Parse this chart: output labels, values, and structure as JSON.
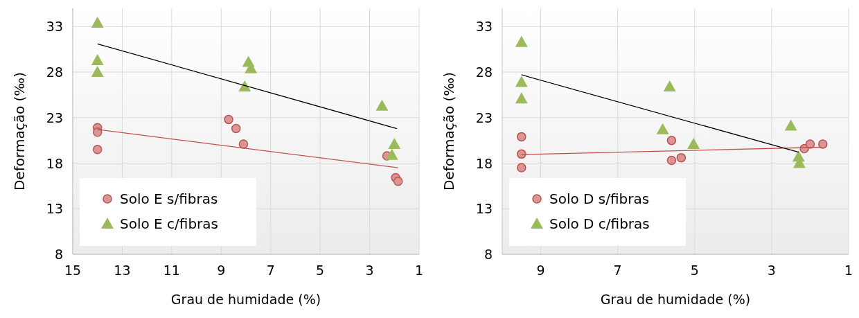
{
  "chart_data": [
    {
      "type": "scatter",
      "xlabel": "Grau de humidade (%)",
      "ylabel": "Deformação (‰)",
      "xlim": [
        15,
        1
      ],
      "xticks": [
        15,
        13,
        11,
        9,
        7,
        5,
        3,
        1
      ],
      "ylim": [
        8,
        35
      ],
      "yticks": [
        8,
        13,
        18,
        23,
        28,
        33
      ],
      "grid": true,
      "legend": "bottom left",
      "series": [
        {
          "name": "Solo E s/fibras",
          "color": "#d99694",
          "marker": "circle",
          "x": [
            14,
            14,
            14,
            8.7,
            8.4,
            8.1,
            2.3,
            1.95,
            1.85
          ],
          "values": [
            21.9,
            21.4,
            19.5,
            22.8,
            21.8,
            20.1,
            18.8,
            16.4,
            16.0
          ]
        },
        {
          "name": "Solo E c/fibras",
          "color": "#9bbb59",
          "marker": "triangle",
          "x": [
            14,
            14,
            14,
            7.9,
            7.8,
            8.05,
            2.5,
            2.0,
            2.1
          ],
          "values": [
            33.4,
            29.3,
            28.0,
            29.1,
            28.4,
            26.4,
            24.3,
            20.1,
            18.9
          ]
        },
        {
          "type": "line",
          "color": "#c0504d",
          "x": [
            14,
            1.85
          ],
          "values": [
            21.7,
            17.5
          ]
        },
        {
          "type": "line",
          "color": "#000000",
          "x": [
            14,
            1.9
          ],
          "values": [
            31.1,
            21.8
          ]
        }
      ]
    },
    {
      "type": "scatter",
      "xlabel": "Grau de humidade (%)",
      "ylabel": "Deformação (‰)",
      "xlim": [
        10,
        1
      ],
      "xticks": [
        9,
        7,
        5,
        3,
        1
      ],
      "ylim": [
        8,
        35
      ],
      "yticks": [
        8,
        13,
        18,
        23,
        28,
        33
      ],
      "grid": true,
      "legend": "bottom left",
      "series": [
        {
          "name": "Solo D s/fibras",
          "color": "#d99694",
          "marker": "circle",
          "x": [
            9.5,
            9.5,
            9.5,
            5.6,
            5.6,
            5.35,
            2.15,
            2.0,
            1.67
          ],
          "values": [
            20.9,
            19.0,
            17.5,
            20.5,
            18.3,
            18.6,
            19.6,
            20.1,
            20.1
          ]
        },
        {
          "name": "Solo D c/fibras",
          "color": "#9bbb59",
          "marker": "triangle",
          "x": [
            9.5,
            9.5,
            9.5,
            5.65,
            5.83,
            5.03,
            2.5,
            2.3,
            2.28
          ],
          "values": [
            31.3,
            26.9,
            25.1,
            26.4,
            21.7,
            20.1,
            22.1,
            18.7,
            18.0
          ]
        },
        {
          "type": "line",
          "color": "#c0504d",
          "x": [
            9.5,
            1.7
          ],
          "values": [
            18.95,
            19.75
          ]
        },
        {
          "type": "line",
          "color": "#000000",
          "x": [
            9.5,
            2.3
          ],
          "values": [
            27.7,
            19.2
          ]
        }
      ]
    }
  ]
}
